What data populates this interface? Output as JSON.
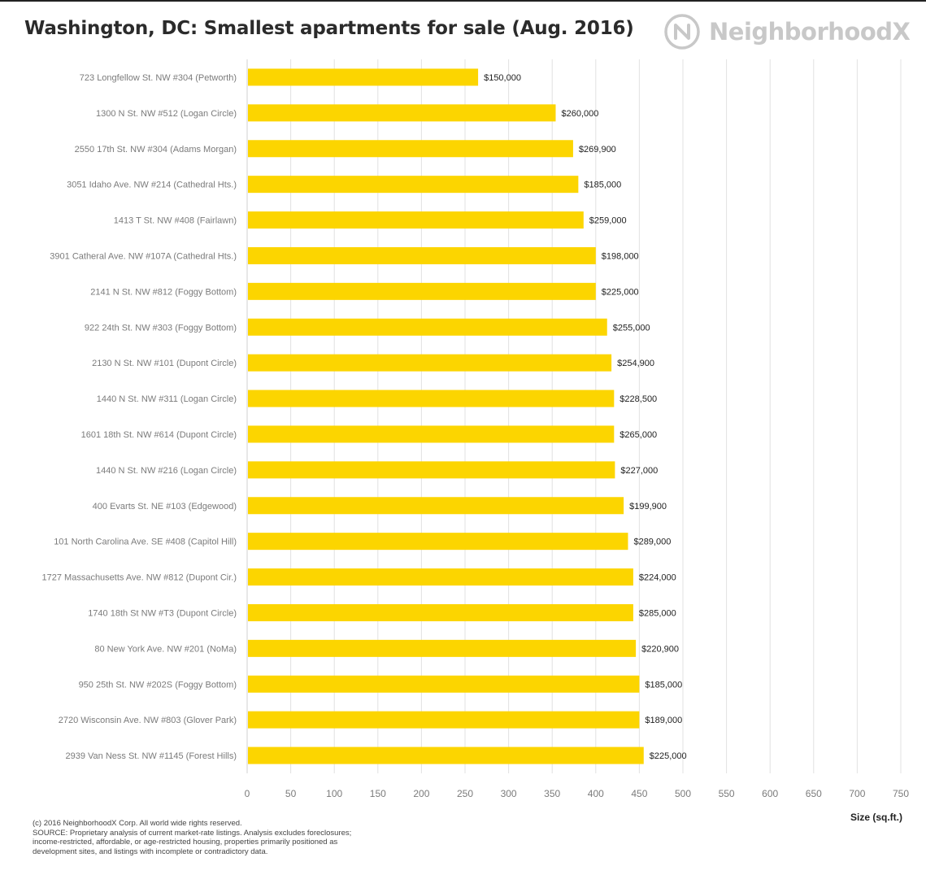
{
  "header": {
    "title": "Washington, DC: Smallest apartments for sale (Aug. 2016)",
    "logo_text": "NeighborhoodX"
  },
  "footer": {
    "copyright": "(c) 2016 NeighborhoodX Corp. All world wide rights reserved.",
    "source_lines": [
      "SOURCE: Proprietary analysis of current market-rate listings. Analysis excludes foreclosures;",
      "income-restricted, affordable, or age-restricted housing, properties primarily positioned as",
      "development sites, and listings with incomplete or contradictory data."
    ]
  },
  "colors": {
    "bar": "#FCD500",
    "grid": "#e2e2e2",
    "label": "#7b7b7b",
    "logo": "#c8c8c8"
  },
  "chart_data": {
    "type": "bar",
    "orientation": "horizontal",
    "title": "Washington, DC: Smallest apartments for sale (Aug. 2016)",
    "xlabel": "Size (sq.ft.)",
    "ylabel": "",
    "xlim": [
      0,
      750
    ],
    "xticks": [
      0,
      50,
      100,
      150,
      200,
      250,
      300,
      350,
      400,
      450,
      500,
      550,
      600,
      650,
      700,
      750
    ],
    "grid": true,
    "categories": [
      "723 Longfellow St. NW #304 (Petworth)",
      "1300 N St. NW #512 (Logan Circle)",
      "2550 17th St. NW #304 (Adams Morgan)",
      "3051 Idaho Ave. NW #214 (Cathedral Hts.)",
      "1413 T St. NW #408 (Fairlawn)",
      "3901 Catheral Ave. NW #107A (Cathedral Hts.)",
      "2141 N St. NW #812 (Foggy Bottom)",
      "922 24th St. NW #303 (Foggy Bottom)",
      "2130 N St. NW #101 (Dupont Circle)",
      "1440 N St. NW #311 (Logan Circle)",
      "1601 18th St. NW #614 (Dupont Circle)",
      "1440 N St. NW #216 (Logan Circle)",
      "400 Evarts St. NE #103 (Edgewood)",
      "101 North Carolina Ave. SE #408 (Capitol Hill)",
      "1727 Massachusetts Ave. NW #812 (Dupont Cir.)",
      "1740 18th St NW #T3 (Dupont Circle)",
      "80 New York Ave. NW #201 (NoMa)",
      "950 25th St. NW #202S (Foggy Bottom)",
      "2720 Wisconsin Ave. NW #803 (Glover Park)",
      "2939 Van Ness St. NW #1145 (Forest Hills)"
    ],
    "values": [
      265,
      354,
      374,
      380,
      386,
      400,
      400,
      413,
      418,
      421,
      421,
      422,
      432,
      437,
      443,
      443,
      446,
      450,
      450,
      455
    ],
    "data_labels": [
      "$150,000",
      "$260,000",
      "$269,900",
      "$185,000",
      "$259,000",
      "$198,000",
      "$225,000",
      "$255,000",
      "$254,900",
      "$228,500",
      "$265,000",
      "$227,000",
      "$199,900",
      "$289,000",
      "$224,000",
      "$285,000",
      "$220,900",
      "$185,000",
      "$189,000",
      "$225,000"
    ]
  }
}
